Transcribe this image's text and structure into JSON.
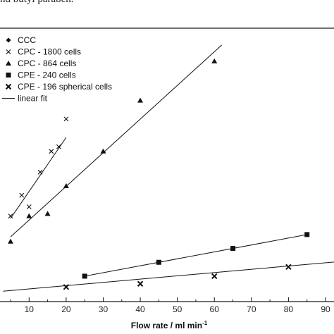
{
  "caption_fragment": "nd butyl paraben.",
  "chart_data": {
    "type": "scatter",
    "xlabel": "Flow rate / ml min",
    "xlabel_superscript": "-1",
    "ylabel": "",
    "xlim": [
      3,
      95
    ],
    "ylim": [
      0,
      1
    ],
    "x_ticks": [
      10,
      20,
      30,
      40,
      50,
      60,
      70,
      80,
      90
    ],
    "grid": false,
    "legend_position": "top-left",
    "series": [
      {
        "name": "CCC",
        "marker": "diamond",
        "points": []
      },
      {
        "name": "CPC - 1800 cells",
        "marker": "x",
        "points": [
          [
            5,
            0.37
          ],
          [
            8,
            0.46
          ],
          [
            10,
            0.41
          ],
          [
            13,
            0.56
          ],
          [
            16,
            0.65
          ],
          [
            18,
            0.67
          ],
          [
            20,
            0.79
          ]
        ],
        "fit": [
          [
            5,
            0.36
          ],
          [
            20,
            0.71
          ]
        ]
      },
      {
        "name": "CPC - 864 cells",
        "marker": "triangle",
        "points": [
          [
            5,
            0.26
          ],
          [
            10,
            0.37
          ],
          [
            15,
            0.38
          ],
          [
            20,
            0.5
          ],
          [
            30,
            0.65
          ],
          [
            40,
            0.87
          ],
          [
            60,
            1.04
          ]
        ],
        "fit": [
          [
            5,
            0.28
          ],
          [
            62,
            1.11
          ]
        ]
      },
      {
        "name": "CPE - 240 cells",
        "marker": "square",
        "points": [
          [
            25,
            0.11
          ],
          [
            45,
            0.17
          ],
          [
            65,
            0.23
          ],
          [
            85,
            0.29
          ]
        ],
        "fit": [
          [
            25,
            0.11
          ],
          [
            85,
            0.29
          ]
        ]
      },
      {
        "name": "CPE - 196 spherical cells",
        "marker": "x-bold",
        "points": [
          [
            20,
            0.063
          ],
          [
            40,
            0.077
          ],
          [
            60,
            0.11
          ],
          [
            80,
            0.15
          ]
        ],
        "fit": [
          [
            3,
            0.045
          ],
          [
            95,
            0.175
          ]
        ]
      },
      {
        "name": "linear fit",
        "marker": "line",
        "points": []
      }
    ]
  }
}
